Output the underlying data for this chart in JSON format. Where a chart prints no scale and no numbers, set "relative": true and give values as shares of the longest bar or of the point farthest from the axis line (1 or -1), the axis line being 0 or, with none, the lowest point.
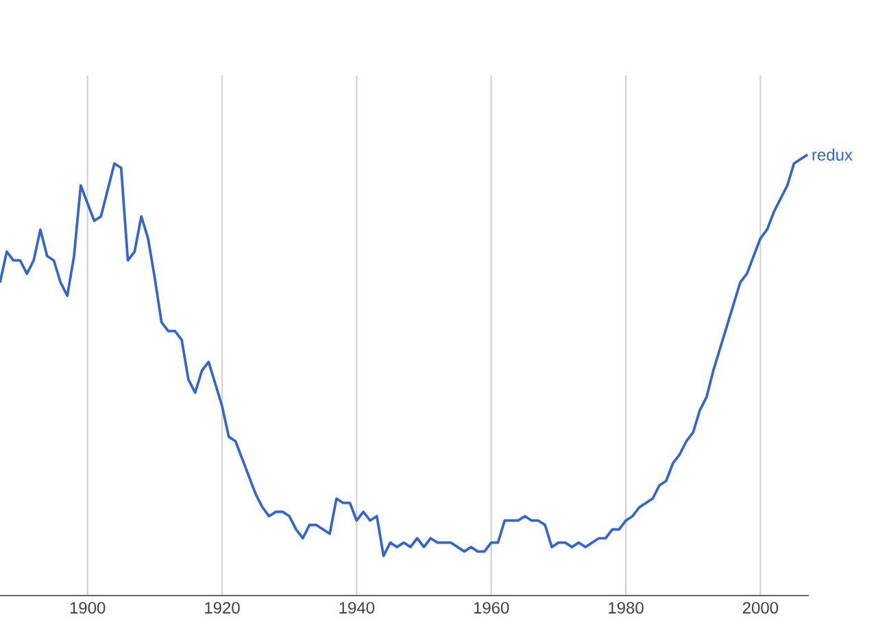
{
  "chart_data": {
    "type": "line",
    "relative": true,
    "grid": true,
    "x": [
      1887,
      1888,
      1889,
      1890,
      1891,
      1892,
      1893,
      1894,
      1895,
      1896,
      1897,
      1898,
      1899,
      1900,
      1901,
      1902,
      1903,
      1904,
      1905,
      1906,
      1907,
      1908,
      1909,
      1910,
      1911,
      1912,
      1913,
      1914,
      1915,
      1916,
      1917,
      1918,
      1919,
      1920,
      1921,
      1922,
      1923,
      1924,
      1925,
      1926,
      1927,
      1928,
      1929,
      1930,
      1931,
      1932,
      1933,
      1934,
      1935,
      1936,
      1937,
      1938,
      1939,
      1940,
      1941,
      1942,
      1943,
      1944,
      1945,
      1946,
      1947,
      1948,
      1949,
      1950,
      1951,
      1952,
      1953,
      1954,
      1955,
      1956,
      1957,
      1958,
      1959,
      1960,
      1961,
      1962,
      1963,
      1964,
      1965,
      1966,
      1967,
      1968,
      1969,
      1970,
      1971,
      1972,
      1973,
      1974,
      1975,
      1976,
      1977,
      1978,
      1979,
      1980,
      1981,
      1982,
      1983,
      1984,
      1985,
      1986,
      1987,
      1988,
      1989,
      1990,
      1991,
      1992,
      1993,
      1994,
      1995,
      1996,
      1997,
      1998,
      1999,
      2000,
      2001,
      2002,
      2003,
      2004,
      2005,
      2006,
      2007
    ],
    "series": [
      {
        "name": "redux",
        "color": "#3366cc",
        "values": [
          0.71,
          0.78,
          0.76,
          0.76,
          0.73,
          0.76,
          0.83,
          0.77,
          0.76,
          0.71,
          0.68,
          0.77,
          0.93,
          0.89,
          0.85,
          0.86,
          0.92,
          0.98,
          0.97,
          0.76,
          0.78,
          0.86,
          0.81,
          0.72,
          0.62,
          0.6,
          0.6,
          0.58,
          0.49,
          0.46,
          0.51,
          0.53,
          0.48,
          0.43,
          0.36,
          0.35,
          0.31,
          0.27,
          0.23,
          0.2,
          0.18,
          0.19,
          0.19,
          0.18,
          0.15,
          0.13,
          0.16,
          0.16,
          0.15,
          0.14,
          0.22,
          0.21,
          0.21,
          0.17,
          0.19,
          0.17,
          0.18,
          0.09,
          0.12,
          0.11,
          0.12,
          0.11,
          0.13,
          0.11,
          0.13,
          0.12,
          0.12,
          0.12,
          0.11,
          0.1,
          0.11,
          0.1,
          0.1,
          0.12,
          0.12,
          0.17,
          0.17,
          0.17,
          0.18,
          0.17,
          0.17,
          0.16,
          0.11,
          0.12,
          0.12,
          0.11,
          0.12,
          0.11,
          0.12,
          0.13,
          0.13,
          0.15,
          0.15,
          0.17,
          0.18,
          0.2,
          0.21,
          0.22,
          0.25,
          0.26,
          0.3,
          0.32,
          0.35,
          0.37,
          0.42,
          0.45,
          0.51,
          0.56,
          0.61,
          0.66,
          0.71,
          0.73,
          0.77,
          0.81,
          0.83,
          0.87,
          0.9,
          0.93,
          0.98,
          0.99,
          1.0
        ]
      }
    ],
    "xlim": [
      1887,
      2007.2
    ],
    "xticks": [
      1900,
      1920,
      1940,
      1960,
      1980,
      2000
    ]
  }
}
